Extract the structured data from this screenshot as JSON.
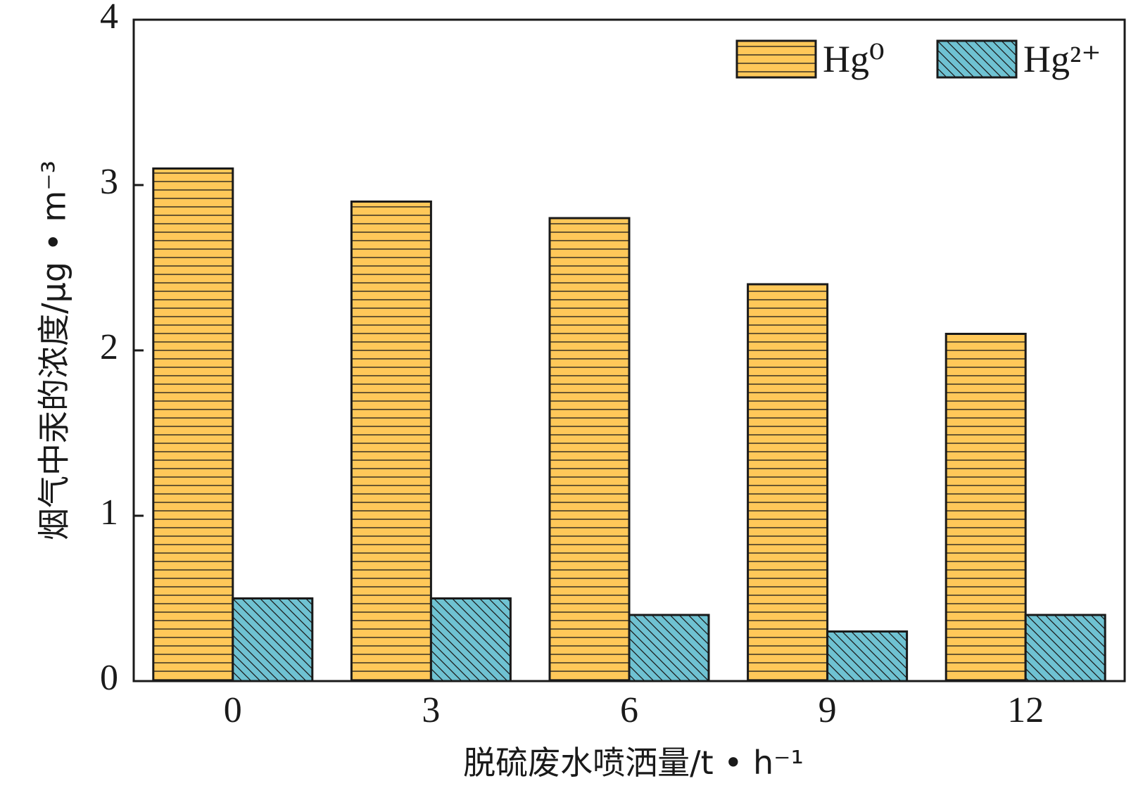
{
  "chart_data": {
    "type": "bar",
    "categories": [
      "0",
      "3",
      "6",
      "9",
      "12"
    ],
    "series": [
      {
        "name": "Hg⁰",
        "values": [
          3.1,
          2.9,
          2.8,
          2.4,
          2.1
        ],
        "color": "#ffc859",
        "pattern": "horizontal-lines"
      },
      {
        "name": "Hg²⁺",
        "values": [
          0.5,
          0.5,
          0.4,
          0.3,
          0.4
        ],
        "color": "#6fc2d2",
        "pattern": "diagonal-lines"
      }
    ],
    "title": "",
    "xlabel": "脱硫废水喷洒量/t • h⁻¹",
    "ylabel": "烟气中汞的浓度/μg • m⁻³",
    "ylim": [
      0,
      4
    ],
    "yticks": [
      "0",
      "1",
      "2",
      "3",
      "4"
    ],
    "legend_position": "top-right",
    "grid": false
  }
}
